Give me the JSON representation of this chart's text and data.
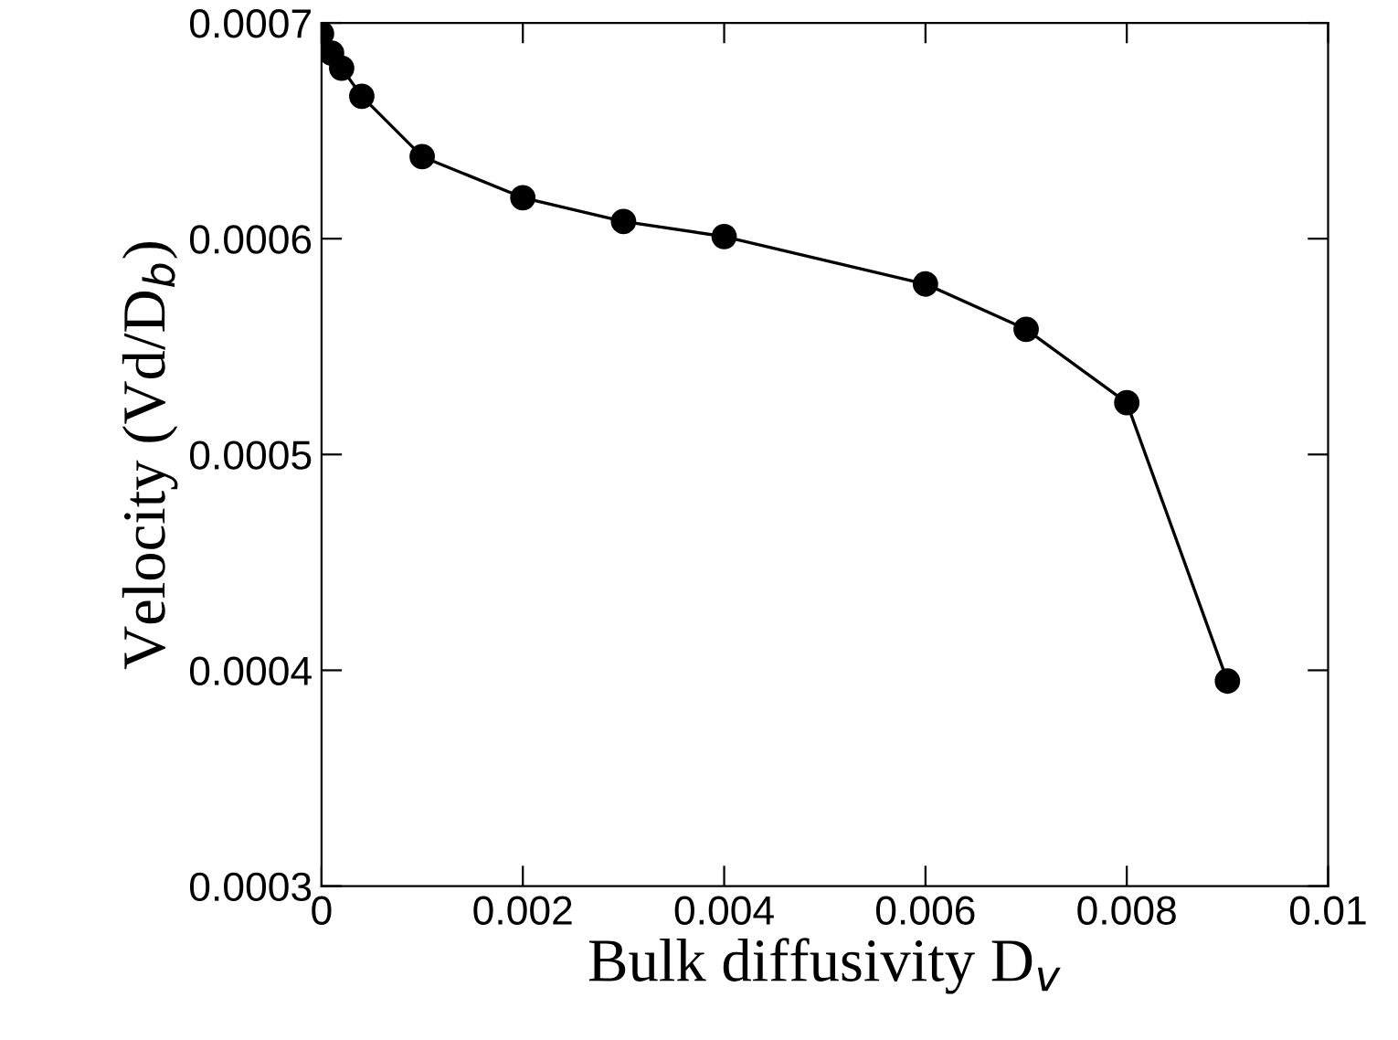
{
  "chart_data": {
    "type": "line",
    "xlabel": "Bulk diffusivity D$_{v}$",
    "ylabel": "Velocity (Vd/D$_{b}$)",
    "x": [
      0,
      0.0001,
      0.0002,
      0.0004,
      0.001,
      0.002,
      0.003,
      0.004,
      0.006,
      0.007,
      0.008,
      0.009
    ],
    "series": [
      {
        "color": "#000000",
        "values": [
          0.000695,
          0.000686,
          0.000679,
          0.000666,
          0.000638,
          0.000619,
          0.000608,
          0.000601,
          0.000579,
          0.000558,
          0.000524,
          0.000395
        ]
      }
    ],
    "marker": "circle",
    "line_style": "solid",
    "xlim": [
      0,
      0.01
    ],
    "xticks": [
      0,
      0.002,
      0.004,
      0.006,
      0.008,
      0.01
    ],
    "ylim": [
      0.0003,
      0.0007
    ],
    "yticks": [
      0.0003,
      0.0004,
      0.0005,
      0.0006,
      0.0007
    ],
    "grid": false,
    "legend": false
  }
}
